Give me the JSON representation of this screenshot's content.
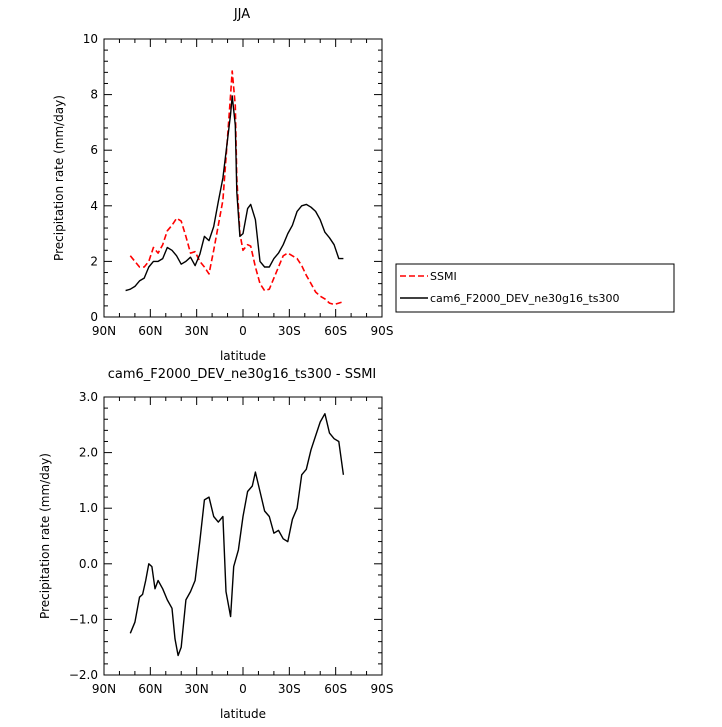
{
  "chart_data": [
    {
      "type": "line",
      "title": "JJA",
      "xlabel": "latitude",
      "ylabel": "Precipitation rate (mm/day)",
      "xlim": [
        90,
        -90
      ],
      "ylim": [
        0,
        10
      ],
      "xticks": [
        90,
        60,
        30,
        0,
        -30,
        -60,
        -90
      ],
      "xtick_labels": [
        "90N",
        "60N",
        "30N",
        "0",
        "30S",
        "60S",
        "90S"
      ],
      "yticks": [
        0,
        2,
        4,
        6,
        8,
        10
      ],
      "ytick_labels": [
        "0",
        "2",
        "4",
        "6",
        "8",
        "10"
      ],
      "legend": "right, outside plot",
      "series": [
        {
          "name": "SSMI",
          "color": "#ff0000",
          "dash": "dashed",
          "x": [
            73,
            70,
            67,
            64,
            61,
            58,
            55,
            52,
            49,
            46,
            43,
            40,
            37,
            34,
            31,
            28,
            25,
            22,
            19,
            16,
            13,
            10,
            8,
            7,
            5,
            4,
            2,
            0,
            -3,
            -5,
            -8,
            -11,
            -14,
            -17,
            -20,
            -23,
            -26,
            -29,
            -32,
            -35,
            -38,
            -41,
            -44,
            -47,
            -50,
            -53,
            -56,
            -59,
            -62,
            -65
          ],
          "values": [
            2.2,
            2.0,
            1.8,
            1.8,
            2.0,
            2.5,
            2.3,
            2.6,
            3.1,
            3.3,
            3.55,
            3.45,
            2.9,
            2.3,
            2.35,
            2.0,
            1.8,
            1.55,
            2.4,
            3.3,
            4.2,
            6.5,
            8.0,
            8.85,
            7.6,
            5.0,
            3.0,
            2.4,
            2.6,
            2.55,
            1.8,
            1.2,
            0.95,
            1.0,
            1.4,
            1.8,
            2.2,
            2.3,
            2.2,
            2.1,
            1.85,
            1.5,
            1.2,
            0.9,
            0.75,
            0.65,
            0.5,
            0.45,
            0.5,
            0.55
          ]
        },
        {
          "name": "cam6_F2000_DEV_ne30g16_ts300",
          "color": "#000000",
          "dash": "solid",
          "x": [
            76,
            73,
            70,
            67,
            64,
            61,
            58,
            55,
            52,
            49,
            46,
            43,
            40,
            37,
            34,
            31,
            28,
            25,
            22,
            19,
            16,
            13,
            10,
            8,
            7,
            5,
            4,
            2,
            0,
            -3,
            -5,
            -8,
            -11,
            -14,
            -17,
            -20,
            -23,
            -26,
            -29,
            -32,
            -35,
            -38,
            -41,
            -44,
            -47,
            -50,
            -53,
            -56,
            -59,
            -62,
            -65
          ],
          "values": [
            0.95,
            1.0,
            1.1,
            1.3,
            1.4,
            1.8,
            2.0,
            2.0,
            2.1,
            2.5,
            2.4,
            2.2,
            1.9,
            2.0,
            2.15,
            1.85,
            2.25,
            2.9,
            2.75,
            3.25,
            4.15,
            5.0,
            6.4,
            7.3,
            7.95,
            6.9,
            4.5,
            2.9,
            3.0,
            3.9,
            4.05,
            3.5,
            2.0,
            1.8,
            1.8,
            2.1,
            2.3,
            2.6,
            3.0,
            3.3,
            3.8,
            4.0,
            4.05,
            3.95,
            3.8,
            3.5,
            3.05,
            2.85,
            2.6,
            2.1,
            2.1
          ]
        }
      ]
    },
    {
      "type": "line",
      "title": "cam6_F2000_DEV_ne30g16_ts300 - SSMI",
      "xlabel": "latitude",
      "ylabel": "Precipitation rate (mm/day)",
      "xlim": [
        90,
        -90
      ],
      "ylim": [
        -2,
        3
      ],
      "xticks": [
        90,
        60,
        30,
        0,
        -30,
        -60,
        -90
      ],
      "xtick_labels": [
        "90N",
        "60N",
        "30N",
        "0",
        "30S",
        "60S",
        "90S"
      ],
      "yticks": [
        -2,
        -1,
        0,
        1,
        2,
        3
      ],
      "ytick_labels": [
        "−2.0",
        "−1.0",
        "0.0",
        "1.0",
        "2.0",
        "3.0"
      ],
      "series": [
        {
          "color": "#000000",
          "dash": "solid",
          "x": [
            73,
            70,
            67,
            65,
            63,
            61,
            59,
            57,
            55,
            52,
            49,
            46,
            44,
            42,
            40,
            37,
            34,
            31,
            28,
            25,
            22,
            19,
            16,
            13,
            11,
            8,
            6,
            3,
            0,
            -3,
            -6,
            -8,
            -11,
            -14,
            -17,
            -20,
            -23,
            -26,
            -29,
            -32,
            -35,
            -38,
            -41,
            -44,
            -47,
            -50,
            -53,
            -56,
            -59,
            -62,
            -65
          ],
          "values": [
            -1.25,
            -1.05,
            -0.6,
            -0.55,
            -0.3,
            0.0,
            -0.05,
            -0.45,
            -0.3,
            -0.45,
            -0.65,
            -0.8,
            -1.35,
            -1.65,
            -1.5,
            -0.65,
            -0.5,
            -0.3,
            0.4,
            1.15,
            1.2,
            0.85,
            0.75,
            0.85,
            -0.5,
            -0.95,
            -0.05,
            0.25,
            0.85,
            1.3,
            1.4,
            1.65,
            1.3,
            0.95,
            0.85,
            0.55,
            0.6,
            0.45,
            0.4,
            0.8,
            1.0,
            1.6,
            1.7,
            2.05,
            2.3,
            2.55,
            2.7,
            2.35,
            2.25,
            2.2,
            1.6
          ]
        }
      ]
    }
  ]
}
